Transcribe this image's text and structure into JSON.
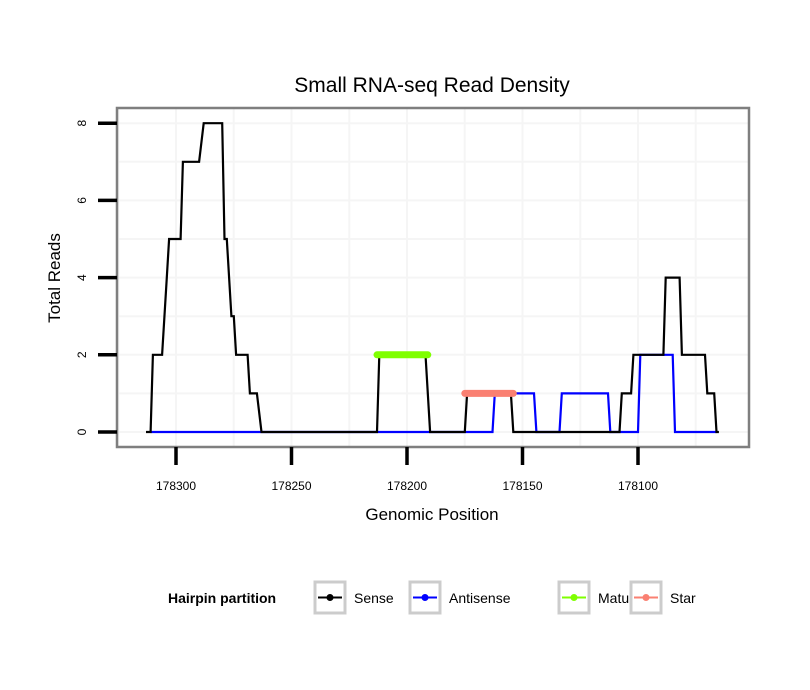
{
  "chart_data": {
    "type": "line",
    "title": "Small RNA-seq Read Density",
    "xlabel": "Genomic Position",
    "ylabel": "Total Reads",
    "x_reversed": true,
    "xlim": [
      178313,
      178065
    ],
    "ylim": [
      0,
      8
    ],
    "x_ticks": [
      178300,
      178250,
      178200,
      178150,
      178100
    ],
    "x_tick_labels": [
      "178300",
      "178250",
      "178200",
      "178150",
      "178100"
    ],
    "y_ticks": [
      0,
      2,
      4,
      6,
      8
    ],
    "y_tick_labels": [
      "0",
      "2",
      "4",
      "6",
      "8"
    ],
    "grid": true,
    "legend": {
      "title": "Hairpin partition",
      "position": "bottom",
      "entries": [
        {
          "name": "Sense",
          "color": "#000000"
        },
        {
          "name": "Antisense",
          "color": "#0000FF"
        },
        {
          "name": "Mature",
          "color": "#7FFF00"
        },
        {
          "name": "Star",
          "color": "#FA8072"
        }
      ]
    },
    "series": [
      {
        "name": "Sense",
        "color": "#000000",
        "points": [
          [
            178313,
            0
          ],
          [
            178311,
            0
          ],
          [
            178310,
            2
          ],
          [
            178306,
            2
          ],
          [
            178304,
            4
          ],
          [
            178303,
            5
          ],
          [
            178298,
            5
          ],
          [
            178297,
            7
          ],
          [
            178290,
            7
          ],
          [
            178288,
            8
          ],
          [
            178280,
            8
          ],
          [
            178279,
            5
          ],
          [
            178278,
            5
          ],
          [
            178276,
            3
          ],
          [
            178275,
            3
          ],
          [
            178274,
            2
          ],
          [
            178269,
            2
          ],
          [
            178268,
            1
          ],
          [
            178265,
            1
          ],
          [
            178263,
            0
          ],
          [
            178213,
            0
          ],
          [
            178212,
            2
          ],
          [
            178192,
            2
          ],
          [
            178190,
            0
          ],
          [
            178175,
            0
          ],
          [
            178174,
            1
          ],
          [
            178155,
            1
          ],
          [
            178154,
            0
          ],
          [
            178108,
            0
          ],
          [
            178107,
            1
          ],
          [
            178103,
            1
          ],
          [
            178102,
            2
          ],
          [
            178089,
            2
          ],
          [
            178088,
            4
          ],
          [
            178082,
            4
          ],
          [
            178081,
            2
          ],
          [
            178071,
            2
          ],
          [
            178070,
            1
          ],
          [
            178067,
            1
          ],
          [
            178066,
            0
          ],
          [
            178065,
            0
          ]
        ]
      },
      {
        "name": "Antisense",
        "color": "#0000FF",
        "points": [
          [
            178311,
            0
          ],
          [
            178163,
            0
          ],
          [
            178162,
            1
          ],
          [
            178145,
            1
          ],
          [
            178144,
            0
          ],
          [
            178134,
            0
          ],
          [
            178133,
            1
          ],
          [
            178113,
            1
          ],
          [
            178112,
            0
          ],
          [
            178100,
            0
          ],
          [
            178099,
            2
          ],
          [
            178085,
            2
          ],
          [
            178084,
            0
          ],
          [
            178066,
            0
          ]
        ]
      },
      {
        "name": "Mature",
        "color": "#7FFF00",
        "points": [
          [
            178213,
            2
          ],
          [
            178191,
            2
          ]
        ]
      },
      {
        "name": "Star",
        "color": "#FA8072",
        "points": [
          [
            178175,
            1
          ],
          [
            178154,
            1
          ]
        ]
      }
    ]
  }
}
